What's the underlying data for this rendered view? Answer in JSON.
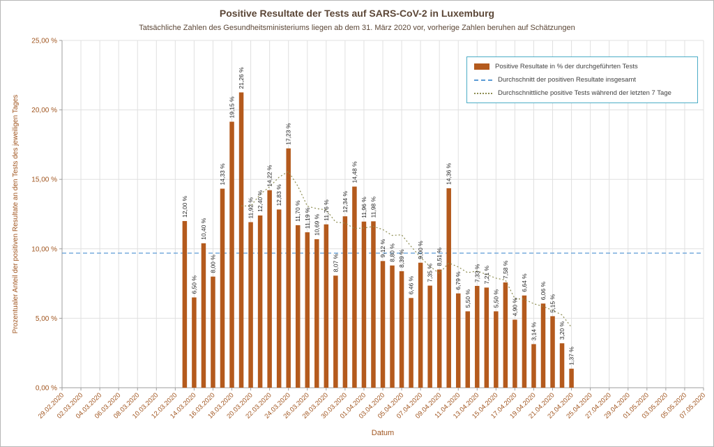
{
  "chart_data": {
    "type": "bar",
    "title": "Positive Resultate der Tests auf SARS-CoV-2 in Luxemburg",
    "subtitle": "Tatsächliche Zahlen des Gesundheitsministeriums liegen ab dem 31. März 2020 vor, vorherige Zahlen beruhen auf Schätzungen",
    "xlabel": "Datum",
    "ylabel": "Prozentualer Anteil der positiven Resultate an den Tests des jeweiligen Tages",
    "ylim": [
      0,
      25
    ],
    "ytick_step": 5,
    "ytick_labels": [
      "0,00 %",
      "5,00 %",
      "10,00 %",
      "15,00 %",
      "20,00 %",
      "25,00 %"
    ],
    "xtick_labels": [
      "29.02.2020",
      "02.03.2020",
      "04.03.2020",
      "06.03.2020",
      "08.03.2020",
      "10.03.2020",
      "12.03.2020",
      "14.03.2020",
      "16.03.2020",
      "18.03.2020",
      "20.03.2020",
      "22.03.2020",
      "24.03.2020",
      "26.03.2020",
      "28.03.2020",
      "30.03.2020",
      "01.04.2020",
      "03.04.2020",
      "05.04.2020",
      "07.04.2020",
      "09.04.2020",
      "11.04.2020",
      "13.04.2020",
      "15.04.2020",
      "17.04.2020",
      "19.04.2020",
      "21.04.2020",
      "23.04.2020",
      "25.04.2020",
      "27.04.2020",
      "29.04.2020",
      "01.05.2020",
      "03.05.2020",
      "05.05.2020",
      "07.05.2020"
    ],
    "days_per_xtick": 2,
    "bar_offset_days": 13,
    "dates": [
      "13.03.2020",
      "14.03.2020",
      "15.03.2020",
      "16.03.2020",
      "17.03.2020",
      "18.03.2020",
      "19.03.2020",
      "20.03.2020",
      "21.03.2020",
      "22.03.2020",
      "23.03.2020",
      "24.03.2020",
      "25.03.2020",
      "26.03.2020",
      "27.03.2020",
      "28.03.2020",
      "29.03.2020",
      "30.03.2020",
      "31.03.2020",
      "01.04.2020",
      "02.04.2020",
      "03.04.2020",
      "04.04.2020",
      "05.04.2020",
      "06.04.2020",
      "07.04.2020",
      "08.04.2020",
      "09.04.2020",
      "10.04.2020",
      "11.04.2020",
      "12.04.2020",
      "13.04.2020",
      "14.04.2020",
      "15.04.2020",
      "16.04.2020",
      "17.04.2020",
      "18.04.2020",
      "19.04.2020",
      "20.04.2020",
      "21.04.2020",
      "22.04.2020",
      "23.04.2020"
    ],
    "values": [
      12.0,
      6.5,
      10.4,
      8.0,
      14.33,
      19.15,
      21.26,
      11.92,
      12.4,
      14.22,
      12.83,
      17.23,
      11.7,
      11.19,
      10.69,
      11.76,
      8.07,
      12.34,
      14.48,
      11.96,
      11.98,
      9.12,
      8.8,
      8.39,
      6.46,
      9.0,
      7.35,
      8.51,
      14.36,
      6.79,
      5.5,
      7.33,
      7.21,
      5.5,
      7.58,
      4.9,
      6.64,
      3.14,
      6.06,
      5.15,
      3.2,
      1.37
    ],
    "value_labels": [
      "12,00 %",
      "6,50 %",
      "10,40 %",
      "8,00 %",
      "14,33 %",
      "19,15 %",
      "21,26 %",
      "11,92 %",
      "12,40 %",
      "14,22 %",
      "12,83 %",
      "17,23 %",
      "11,70 %",
      "11,19 %",
      "10,69 %",
      "11,76 %",
      "8,07 %",
      "12,34 %",
      "14,48 %",
      "11,96 %",
      "11,98 %",
      "9,12 %",
      "8,80 %",
      "8,39 %",
      "6,46 %",
      "9,00 %",
      "7,35 %",
      "8,51 %",
      "14,36 %",
      "6,79 %",
      "5,50 %",
      "7,33 %",
      "7,21 %",
      "5,50 %",
      "7,58 %",
      "4,90 %",
      "6,64 %",
      "3,14 %",
      "6,06 %",
      "5,15 %",
      "3,20 %",
      "1,37 %"
    ],
    "overall_average": 9.69,
    "rolling_window_days": 7,
    "grid": true,
    "legend_position": "top-right",
    "legend": [
      {
        "label": "Positive Resultate in % der durchgeführten Tests",
        "type": "bar",
        "color": "#b45a1d"
      },
      {
        "label": "Durchschnitt der positiven Resultate insgesamt",
        "type": "dashed-line",
        "color": "#5b9bd5"
      },
      {
        "label": "Durchschnittliche positive Tests während der letzten 7 Tage",
        "type": "dotted-line",
        "color": "#8c8c50"
      }
    ],
    "colors": {
      "bar": "#b45a1d",
      "average_line": "#5b9bd5",
      "rolling_line": "#8c8c50",
      "gridline": "#e0e0e0",
      "axis": "#9e9e9e",
      "axis_text": "#a0551f",
      "title_text": "#5b4636"
    }
  }
}
